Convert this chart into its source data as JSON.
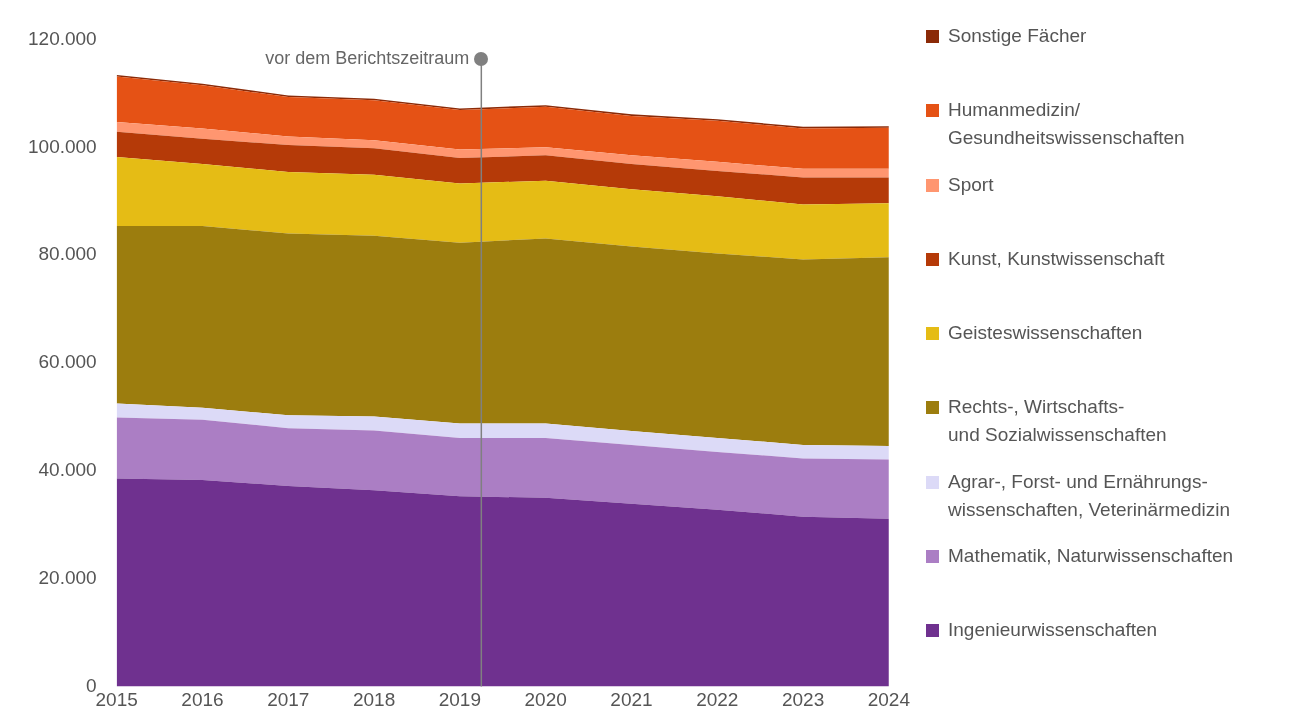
{
  "chart_data": {
    "type": "area",
    "stacked": true,
    "x": [
      2015,
      2016,
      2017,
      2018,
      2019,
      2020,
      2021,
      2022,
      2023,
      2024
    ],
    "xlim": [
      2015,
      2024
    ],
    "xticks": [
      2015,
      2016,
      2017,
      2018,
      2019,
      2020,
      2021,
      2022,
      2023,
      2024
    ],
    "ylim": [
      0,
      120000
    ],
    "yticks": [
      {
        "value": 0,
        "label": "0"
      },
      {
        "value": 20000,
        "label": "20.000"
      },
      {
        "value": 40000,
        "label": "40.000"
      },
      {
        "value": 60000,
        "label": "60.000"
      },
      {
        "value": 80000,
        "label": "80.000"
      },
      {
        "value": 100000,
        "label": "100.000"
      },
      {
        "value": 120000,
        "label": "120.000"
      }
    ],
    "grid": false,
    "legend": "right",
    "ref_lines": [
      {
        "axis": "x",
        "value": 2019.25,
        "label": "vor dem Berichtszeitraum",
        "color": "#808080"
      }
    ],
    "series": [
      {
        "name": "Ingenieurwissenschaften",
        "color": "#6f318f",
        "values": [
          38600,
          38300,
          37200,
          36400,
          35300,
          35000,
          33900,
          32800,
          31500,
          31100
        ]
      },
      {
        "name": "Mathematik, Naturwissenschaften",
        "color": "#ab7ec4",
        "values": [
          11300,
          11200,
          10700,
          11100,
          10800,
          11100,
          10900,
          10700,
          10800,
          11000
        ]
      },
      {
        "name": "Agrar-, Forst- und Ernährungs-\nwissenschaften, Veterinärmedizin",
        "color": "#dcdaf7",
        "values": [
          2600,
          2200,
          2400,
          2600,
          2700,
          2700,
          2600,
          2600,
          2500,
          2500
        ]
      },
      {
        "name": "Rechts-, Wirtschafts-\nund Sozialwissenschaften",
        "color": "#9c7d0e",
        "values": [
          32900,
          33700,
          33700,
          33500,
          33500,
          34300,
          34200,
          34200,
          34400,
          35000
        ]
      },
      {
        "name": "Geisteswissenschaften",
        "color": "#e5bc15",
        "values": [
          12800,
          11500,
          11400,
          11300,
          11000,
          10700,
          10600,
          10600,
          10200,
          10000
        ]
      },
      {
        "name": "Kunst, Kunstwissenschaft",
        "color": "#b53a08",
        "values": [
          4700,
          4700,
          5000,
          4900,
          4700,
          4700,
          4700,
          4700,
          5000,
          4800
        ]
      },
      {
        "name": "Sport",
        "color": "#ff9670",
        "values": [
          1800,
          1900,
          1600,
          1500,
          1600,
          1500,
          1600,
          1700,
          1600,
          1600
        ]
      },
      {
        "name": "Humanmedizin/\nGesundheitswissenschaften",
        "color": "#e55215",
        "values": [
          8400,
          8000,
          7300,
          7400,
          7300,
          7500,
          7300,
          7600,
          7500,
          7600
        ]
      },
      {
        "name": "Sonstige Fächer",
        "color": "#8b2a07",
        "values": [
          300,
          300,
          300,
          300,
          300,
          300,
          300,
          300,
          300,
          300
        ]
      }
    ]
  }
}
